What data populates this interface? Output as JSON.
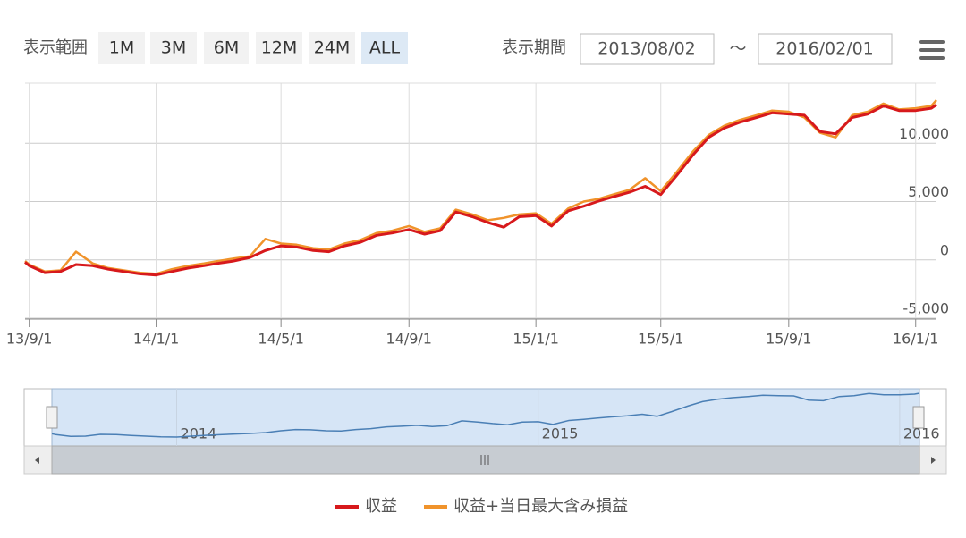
{
  "ui": {
    "range_label": "表示範囲",
    "range_buttons": [
      "1M",
      "3M",
      "6M",
      "12M",
      "24M",
      "ALL"
    ],
    "selected_range": "ALL",
    "period_label": "表示期間",
    "period_from": "2013/08/02",
    "period_sep": "～",
    "period_to": "2016/02/01"
  },
  "chart_data": {
    "type": "line",
    "x": [
      "2013-08-28",
      "2013-09-01",
      "2013-09-16",
      "2013-10-01",
      "2013-10-16",
      "2013-11-01",
      "2013-11-16",
      "2013-12-01",
      "2013-12-16",
      "2014-01-01",
      "2014-01-16",
      "2014-02-01",
      "2014-02-16",
      "2014-03-01",
      "2014-03-16",
      "2014-04-01",
      "2014-04-16",
      "2014-05-01",
      "2014-05-16",
      "2014-06-01",
      "2014-06-16",
      "2014-07-01",
      "2014-07-16",
      "2014-08-01",
      "2014-08-16",
      "2014-09-01",
      "2014-09-16",
      "2014-10-01",
      "2014-10-16",
      "2014-11-01",
      "2014-11-16",
      "2014-12-01",
      "2014-12-16",
      "2015-01-01",
      "2015-01-16",
      "2015-02-01",
      "2015-02-16",
      "2015-03-01",
      "2015-03-16",
      "2015-04-01",
      "2015-04-16",
      "2015-05-01",
      "2015-05-16",
      "2015-06-01",
      "2015-06-16",
      "2015-07-01",
      "2015-07-16",
      "2015-08-01",
      "2015-08-16",
      "2015-09-01",
      "2015-09-16",
      "2015-10-01",
      "2015-10-16",
      "2015-11-01",
      "2015-11-16",
      "2015-12-01",
      "2015-12-16",
      "2016-01-01",
      "2016-01-16",
      "2016-01-21"
    ],
    "series": [
      {
        "name": "収益",
        "color": "#d7191c",
        "values": [
          -200,
          -500,
          -1100,
          -1000,
          -400,
          -500,
          -800,
          -1000,
          -1200,
          -1300,
          -1000,
          -700,
          -500,
          -300,
          -100,
          200,
          800,
          1200,
          1100,
          800,
          700,
          1200,
          1500,
          2100,
          2300,
          2600,
          2200,
          2500,
          4100,
          3700,
          3200,
          2800,
          3700,
          3800,
          2900,
          4200,
          4600,
          5000,
          5400,
          5800,
          6300,
          5600,
          7200,
          9000,
          10500,
          11300,
          11800,
          12200,
          12600,
          12500,
          12400,
          11000,
          10800,
          12200,
          12500,
          13200,
          12800,
          12800,
          13000,
          13300
        ]
      },
      {
        "name": "収益+当日最大含み損益",
        "color": "#f0932b",
        "values": [
          -100,
          -400,
          -1000,
          -900,
          700,
          -300,
          -700,
          -900,
          -1100,
          -1200,
          -800,
          -500,
          -300,
          -100,
          100,
          300,
          1800,
          1400,
          1300,
          1000,
          900,
          1400,
          1700,
          2300,
          2500,
          2900,
          2400,
          2700,
          4300,
          3900,
          3400,
          3600,
          3900,
          4000,
          3100,
          4400,
          5000,
          5200,
          5600,
          6000,
          7000,
          5900,
          7500,
          9300,
          10700,
          11500,
          12000,
          12400,
          12800,
          12700,
          12200,
          10900,
          10500,
          12400,
          12700,
          13400,
          12900,
          13000,
          13200,
          13700
        ]
      }
    ],
    "xlim": [
      "2013-08-28",
      "2016-01-21"
    ],
    "xticks": [
      {
        "value": "2013-09-01",
        "label": "13/9/1"
      },
      {
        "value": "2014-01-01",
        "label": "14/1/1"
      },
      {
        "value": "2014-05-01",
        "label": "14/5/1"
      },
      {
        "value": "2014-09-01",
        "label": "14/9/1"
      },
      {
        "value": "2015-01-01",
        "label": "15/1/1"
      },
      {
        "value": "2015-05-01",
        "label": "15/5/1"
      },
      {
        "value": "2015-09-01",
        "label": "15/9/1"
      },
      {
        "value": "2016-01-01",
        "label": "16/1/1"
      }
    ],
    "ylim": [
      -5000,
      15000
    ],
    "yticks": [
      {
        "value": -5000,
        "label": "-5,000"
      },
      0,
      {
        "value": 5000,
        "label": "5,000"
      },
      {
        "value": 10000,
        "label": "10,000"
      }
    ],
    "grid": true,
    "legend": "bottom",
    "navigator": {
      "xticks": [
        {
          "value": "2014-01-01",
          "label": "2014"
        },
        {
          "value": "2015-01-01",
          "label": "2015"
        },
        {
          "value": "2016-01-01",
          "label": "2016"
        }
      ],
      "color": "#4a7fb5"
    }
  }
}
